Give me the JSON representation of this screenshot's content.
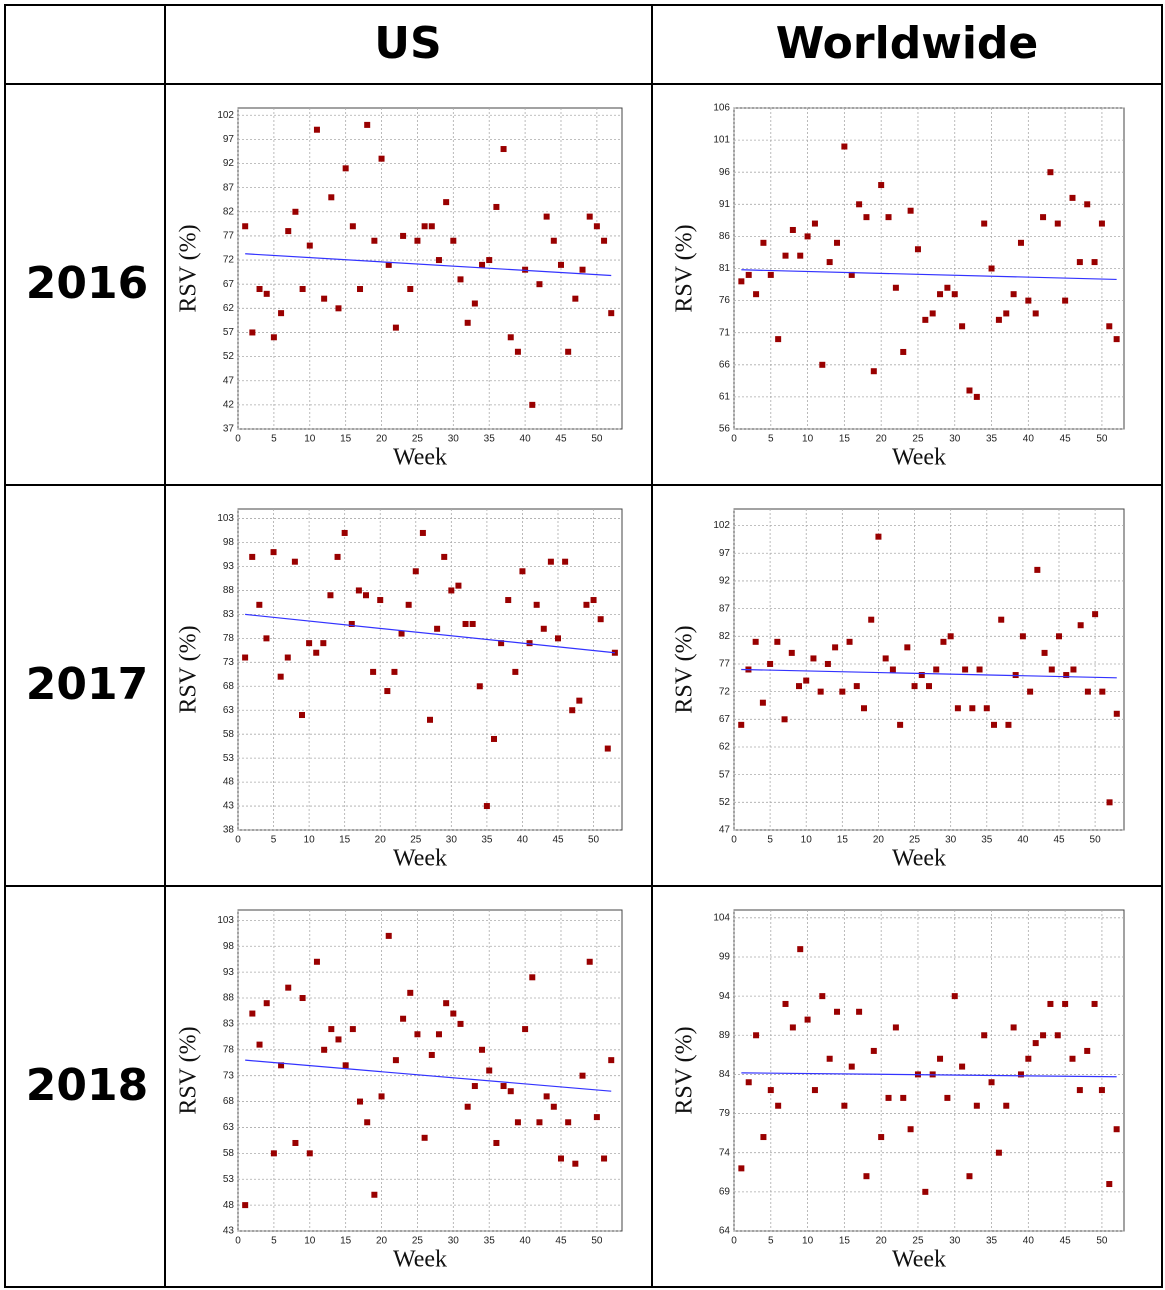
{
  "table": {
    "columns": [
      "US",
      "Worldwide"
    ],
    "rows": [
      "2016",
      "2017",
      "2018"
    ]
  },
  "chart_data": [
    {
      "type": "scatter",
      "xlabel": "Week",
      "ylabel": "RSV (%)",
      "grid": true,
      "color": "#990000",
      "xlim": [
        0,
        53.5
      ],
      "xticks": [
        0,
        5,
        10,
        15,
        20,
        25,
        30,
        35,
        40,
        45,
        50
      ],
      "ylim": [
        37,
        103.5
      ],
      "yticks": [
        37,
        42,
        47,
        52,
        57,
        62,
        67,
        72,
        77,
        82,
        87,
        92,
        97,
        102
      ],
      "x": [
        1,
        2,
        3,
        4,
        5,
        6,
        7,
        8,
        9,
        10,
        11,
        12,
        13,
        14,
        15,
        16,
        17,
        18,
        19,
        20,
        21,
        22,
        23,
        24,
        25,
        26,
        27,
        28,
        29,
        30,
        31,
        32,
        33,
        34,
        35,
        36,
        37,
        38,
        39,
        40,
        41,
        42,
        43,
        44,
        45,
        46,
        47,
        48,
        49,
        50,
        51,
        52
      ],
      "values": [
        79,
        57,
        66,
        65,
        56,
        61,
        78,
        82,
        66,
        75,
        99,
        64,
        85,
        62,
        91,
        79,
        66,
        100,
        76,
        93,
        71,
        58,
        77,
        66,
        76,
        79,
        79,
        72,
        84,
        76,
        68,
        59,
        63,
        71,
        72,
        83,
        95,
        56,
        53,
        70,
        42,
        67,
        81,
        76,
        71,
        53,
        64,
        70,
        81,
        79,
        76,
        61
      ],
      "trend": {
        "color": "#3333ff",
        "x": [
          1,
          52
        ],
        "values": [
          73.3,
          68.8
        ]
      }
    },
    {
      "type": "scatter",
      "xlabel": "Week",
      "ylabel": "RSV (%)",
      "grid": true,
      "color": "#990000",
      "xlim": [
        0,
        53
      ],
      "xticks": [
        0,
        5,
        10,
        15,
        20,
        25,
        30,
        35,
        40,
        45,
        50
      ],
      "ylim": [
        56,
        106
      ],
      "yticks": [
        56,
        61,
        66,
        71,
        76,
        81,
        86,
        91,
        96,
        101,
        106
      ],
      "x": [
        1,
        2,
        3,
        4,
        5,
        6,
        7,
        8,
        9,
        10,
        11,
        12,
        13,
        14,
        15,
        16,
        17,
        18,
        19,
        20,
        21,
        22,
        23,
        24,
        25,
        26,
        27,
        28,
        29,
        30,
        31,
        32,
        33,
        34,
        35,
        36,
        37,
        38,
        39,
        40,
        41,
        42,
        43,
        44,
        45,
        46,
        47,
        48,
        49,
        50,
        51,
        52
      ],
      "values": [
        79,
        80,
        77,
        85,
        80,
        70,
        83,
        87,
        83,
        86,
        88,
        66,
        82,
        85,
        100,
        80,
        91,
        89,
        65,
        94,
        89,
        78,
        68,
        90,
        84,
        73,
        74,
        77,
        78,
        77,
        72,
        62,
        61,
        88,
        81,
        73,
        74,
        77,
        85,
        76,
        74,
        89,
        96,
        88,
        76,
        92,
        82,
        91,
        82,
        88,
        72,
        70
      ],
      "trend": {
        "color": "#3333ff",
        "x": [
          1,
          52
        ],
        "values": [
          80.8,
          79.3
        ]
      }
    },
    {
      "type": "scatter",
      "xlabel": "Week",
      "ylabel": "RSV (%)",
      "grid": true,
      "color": "#990000",
      "xlim": [
        0,
        54
      ],
      "xticks": [
        0,
        5,
        10,
        15,
        20,
        25,
        30,
        35,
        40,
        45,
        50
      ],
      "ylim": [
        38,
        105
      ],
      "yticks": [
        38,
        43,
        48,
        53,
        58,
        63,
        68,
        73,
        78,
        83,
        88,
        93,
        98,
        103
      ],
      "x": [
        1,
        2,
        3,
        4,
        5,
        6,
        7,
        8,
        9,
        10,
        11,
        12,
        13,
        14,
        15,
        16,
        17,
        18,
        19,
        20,
        21,
        22,
        23,
        24,
        25,
        26,
        27,
        28,
        29,
        30,
        31,
        32,
        33,
        34,
        35,
        36,
        37,
        38,
        39,
        40,
        41,
        42,
        43,
        44,
        45,
        46,
        47,
        48,
        49,
        50,
        51,
        52,
        53
      ],
      "values": [
        74,
        95,
        85,
        78,
        96,
        70,
        74,
        94,
        62,
        77,
        75,
        77,
        87,
        95,
        100,
        81,
        88,
        87,
        71,
        86,
        67,
        71,
        79,
        85,
        92,
        100,
        61,
        80,
        95,
        88,
        89,
        81,
        81,
        68,
        43,
        57,
        77,
        86,
        71,
        92,
        77,
        85,
        80,
        94,
        78,
        94,
        63,
        65,
        85,
        86,
        82,
        55,
        75
      ],
      "trend": {
        "color": "#3333ff",
        "x": [
          1,
          53
        ],
        "values": [
          83,
          75
        ]
      }
    },
    {
      "type": "scatter",
      "xlabel": "Week",
      "ylabel": "RSV (%)",
      "grid": true,
      "color": "#990000",
      "xlim": [
        0,
        54
      ],
      "xticks": [
        0,
        5,
        10,
        15,
        20,
        25,
        30,
        35,
        40,
        45,
        50
      ],
      "ylim": [
        47,
        105
      ],
      "yticks": [
        47,
        52,
        57,
        62,
        67,
        72,
        77,
        82,
        87,
        92,
        97,
        102
      ],
      "x": [
        1,
        2,
        3,
        4,
        5,
        6,
        7,
        8,
        9,
        10,
        11,
        12,
        13,
        14,
        15,
        16,
        17,
        18,
        19,
        20,
        21,
        22,
        23,
        24,
        25,
        26,
        27,
        28,
        29,
        30,
        31,
        32,
        33,
        34,
        35,
        36,
        37,
        38,
        39,
        40,
        41,
        42,
        43,
        44,
        45,
        46,
        47,
        48,
        49,
        50,
        51,
        52,
        53
      ],
      "values": [
        66,
        76,
        81,
        70,
        77,
        81,
        67,
        79,
        73,
        74,
        78,
        72,
        77,
        80,
        72,
        81,
        73,
        69,
        85,
        100,
        78,
        76,
        66,
        80,
        73,
        75,
        73,
        76,
        81,
        82,
        69,
        76,
        69,
        76,
        69,
        66,
        85,
        66,
        75,
        82,
        72,
        94,
        79,
        76,
        82,
        75,
        76,
        84,
        72,
        86,
        72,
        52,
        68
      ],
      "trend": {
        "color": "#3333ff",
        "x": [
          1,
          53
        ],
        "values": [
          76,
          74.5
        ]
      }
    },
    {
      "type": "scatter",
      "xlabel": "Week",
      "ylabel": "RSV (%)",
      "grid": true,
      "color": "#990000",
      "xlim": [
        0,
        53.5
      ],
      "xticks": [
        0,
        5,
        10,
        15,
        20,
        25,
        30,
        35,
        40,
        45,
        50
      ],
      "ylim": [
        43,
        105
      ],
      "yticks": [
        43,
        48,
        53,
        58,
        63,
        68,
        73,
        78,
        83,
        88,
        93,
        98,
        103
      ],
      "x": [
        1,
        2,
        3,
        4,
        5,
        6,
        7,
        8,
        9,
        10,
        11,
        12,
        13,
        14,
        15,
        16,
        17,
        18,
        19,
        20,
        21,
        22,
        23,
        24,
        25,
        26,
        27,
        28,
        29,
        30,
        31,
        32,
        33,
        34,
        35,
        36,
        37,
        38,
        39,
        40,
        41,
        42,
        43,
        44,
        45,
        46,
        47,
        48,
        49,
        50,
        51,
        52
      ],
      "values": [
        48,
        85,
        79,
        87,
        58,
        75,
        90,
        60,
        88,
        58,
        95,
        78,
        82,
        80,
        75,
        82,
        68,
        64,
        50,
        69,
        100,
        76,
        84,
        89,
        81,
        61,
        77,
        81,
        87,
        85,
        83,
        67,
        71,
        78,
        74,
        60,
        71,
        70,
        64,
        82,
        92,
        64,
        69,
        67,
        57,
        64,
        56,
        73,
        95,
        65,
        57,
        76
      ],
      "trend": {
        "color": "#3333ff",
        "x": [
          1,
          52
        ],
        "values": [
          76,
          70
        ]
      }
    },
    {
      "type": "scatter",
      "xlabel": "Week",
      "ylabel": "RSV (%)",
      "grid": true,
      "color": "#990000",
      "xlim": [
        0,
        53
      ],
      "xticks": [
        0,
        5,
        10,
        15,
        20,
        25,
        30,
        35,
        40,
        45,
        50
      ],
      "ylim": [
        64,
        105
      ],
      "yticks": [
        64,
        69,
        74,
        79,
        84,
        89,
        94,
        99,
        104
      ],
      "x": [
        1,
        2,
        3,
        4,
        5,
        6,
        7,
        8,
        9,
        10,
        11,
        12,
        13,
        14,
        15,
        16,
        17,
        18,
        19,
        20,
        21,
        22,
        23,
        24,
        25,
        26,
        27,
        28,
        29,
        30,
        31,
        32,
        33,
        34,
        35,
        36,
        37,
        38,
        39,
        40,
        41,
        42,
        43,
        44,
        45,
        46,
        47,
        48,
        49,
        50,
        51,
        52
      ],
      "values": [
        72,
        83,
        89,
        76,
        82,
        80,
        93,
        90,
        100,
        91,
        82,
        94,
        86,
        92,
        80,
        85,
        92,
        71,
        87,
        76,
        81,
        90,
        81,
        77,
        84,
        69,
        84,
        86,
        81,
        94,
        85,
        71,
        80,
        89,
        83,
        74,
        80,
        90,
        84,
        86,
        88,
        89,
        93,
        89,
        93,
        86,
        82,
        87,
        93,
        82,
        70,
        77
      ],
      "trend": {
        "color": "#3333ff",
        "x": [
          1,
          52
        ],
        "values": [
          84.2,
          83.7
        ]
      }
    }
  ]
}
